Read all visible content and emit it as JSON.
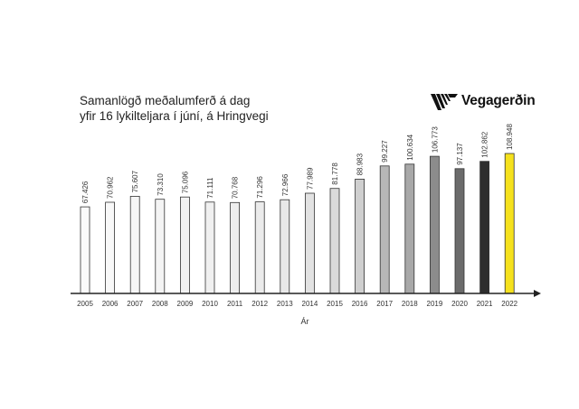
{
  "chart_data": {
    "type": "bar",
    "title_lines": [
      "Samanlögð meðalumferð á dag",
      "yfir 16 lykilteljara í júní, á Hringvegi"
    ],
    "xlabel": "Ár",
    "ylabel": "",
    "ylim": [
      0,
      115000
    ],
    "grid": false,
    "legend": "none",
    "categories": [
      "2005",
      "2006",
      "2007",
      "2008",
      "2009",
      "2010",
      "2011",
      "2012",
      "2013",
      "2014",
      "2015",
      "2016",
      "2017",
      "2018",
      "2019",
      "2020",
      "2021",
      "2022"
    ],
    "values": [
      67426,
      70962,
      75607,
      73310,
      75096,
      71111,
      70768,
      71296,
      72966,
      77989,
      81778,
      88983,
      99227,
      100634,
      106773,
      97137,
      102862,
      108948
    ],
    "value_labels": [
      "67.426",
      "70.962",
      "75.607",
      "73.310",
      "75.096",
      "71.111",
      "70.768",
      "71.296",
      "72.966",
      "77.989",
      "81.778",
      "88.983",
      "99.227",
      "100.634",
      "106.773",
      "97.137",
      "102.862",
      "108.948"
    ],
    "bar_colors": [
      "#fafafa",
      "#f8f8f8",
      "#f6f6f6",
      "#f4f4f4",
      "#f2f2f2",
      "#f0f0f0",
      "#eeeeee",
      "#ebebeb",
      "#e8e8e8",
      "#e2e2e2",
      "#dadada",
      "#cfcfcf",
      "#b7b7b7",
      "#a8a8a8",
      "#8c8c8c",
      "#6b6b6b",
      "#2e2e2e",
      "#f5e11d"
    ]
  },
  "brand": {
    "name": "Vegagerðin",
    "icon": "stripes-logo-icon"
  }
}
